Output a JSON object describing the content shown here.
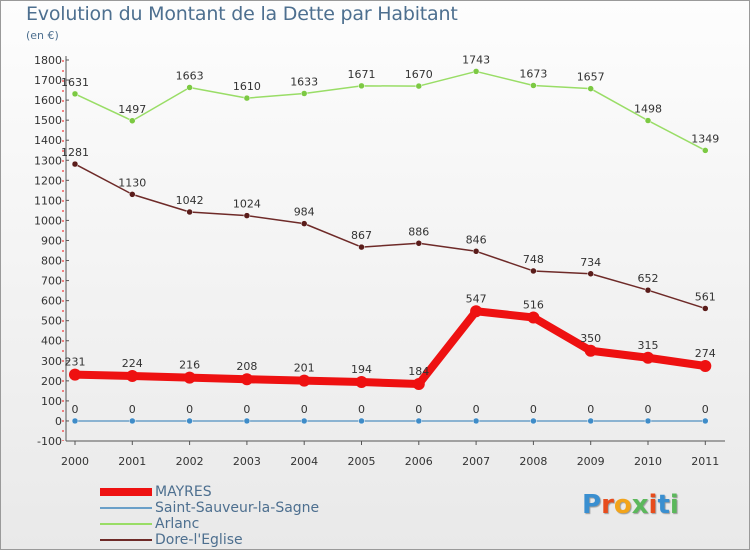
{
  "header": {
    "title": "Evolution du Montant de la Dette par Habitant",
    "unit": "(en €)"
  },
  "colors": {
    "MAYRES": "#ee1111",
    "Saint-Sauveur-la-Sagne": "#6a9fc8",
    "Arlanc": "#99dd66",
    "Dore-l'Eglise": "#6e2a28"
  },
  "logo": {
    "text": "Proxiti",
    "colors": [
      "#3a8fd0",
      "#e74c1c",
      "#f2a41b",
      "#5cb85c",
      "#e74c1c",
      "#3a8fd0",
      "#5cb85c"
    ]
  },
  "chart_data": {
    "type": "line",
    "x": [
      "2000",
      "2001",
      "2002",
      "2003",
      "2004",
      "2005",
      "2006",
      "2007",
      "2008",
      "2009",
      "2010",
      "2011"
    ],
    "ylim": [
      -100,
      1800
    ],
    "yticks": [
      -100,
      0,
      100,
      200,
      300,
      400,
      500,
      600,
      700,
      800,
      900,
      1000,
      1100,
      1200,
      1300,
      1400,
      1500,
      1600,
      1700,
      1800
    ],
    "grid": false,
    "legend_position": "bottom-left",
    "series": [
      {
        "name": "MAYRES",
        "values": [
          231,
          224,
          216,
          208,
          201,
          194,
          184,
          547,
          516,
          350,
          315,
          274
        ],
        "labels": [
          "231",
          "224",
          "216",
          "208",
          "201",
          "194",
          "184",
          "547",
          "516",
          "350",
          "315",
          "274"
        ]
      },
      {
        "name": "Saint-Sauveur-la-Sagne",
        "values": [
          0,
          0,
          0,
          0,
          0,
          0,
          0,
          0,
          0,
          0,
          0,
          0
        ],
        "labels": [
          "0",
          "0",
          "0",
          "0",
          "0",
          "0",
          "0",
          "0",
          "0",
          "0",
          "0",
          "0"
        ]
      },
      {
        "name": "Arlanc",
        "values": [
          1631,
          1497,
          1663,
          1610,
          1633,
          1671,
          1670,
          1743,
          1673,
          1657,
          1498,
          1349
        ],
        "labels": [
          "1631",
          "1497",
          "1663",
          "1610",
          "1633",
          "1671",
          "1670",
          "1743",
          "1673",
          "1657",
          "1498",
          "1349"
        ]
      },
      {
        "name": "Dore-l'Eglise",
        "values": [
          1281,
          1130,
          1042,
          1024,
          984,
          867,
          886,
          846,
          748,
          734,
          652,
          561
        ],
        "labels": [
          "1281",
          "1130",
          "1042",
          "1024",
          "984",
          "867",
          "886",
          "846",
          "748",
          "734",
          "652",
          "561"
        ]
      }
    ]
  }
}
